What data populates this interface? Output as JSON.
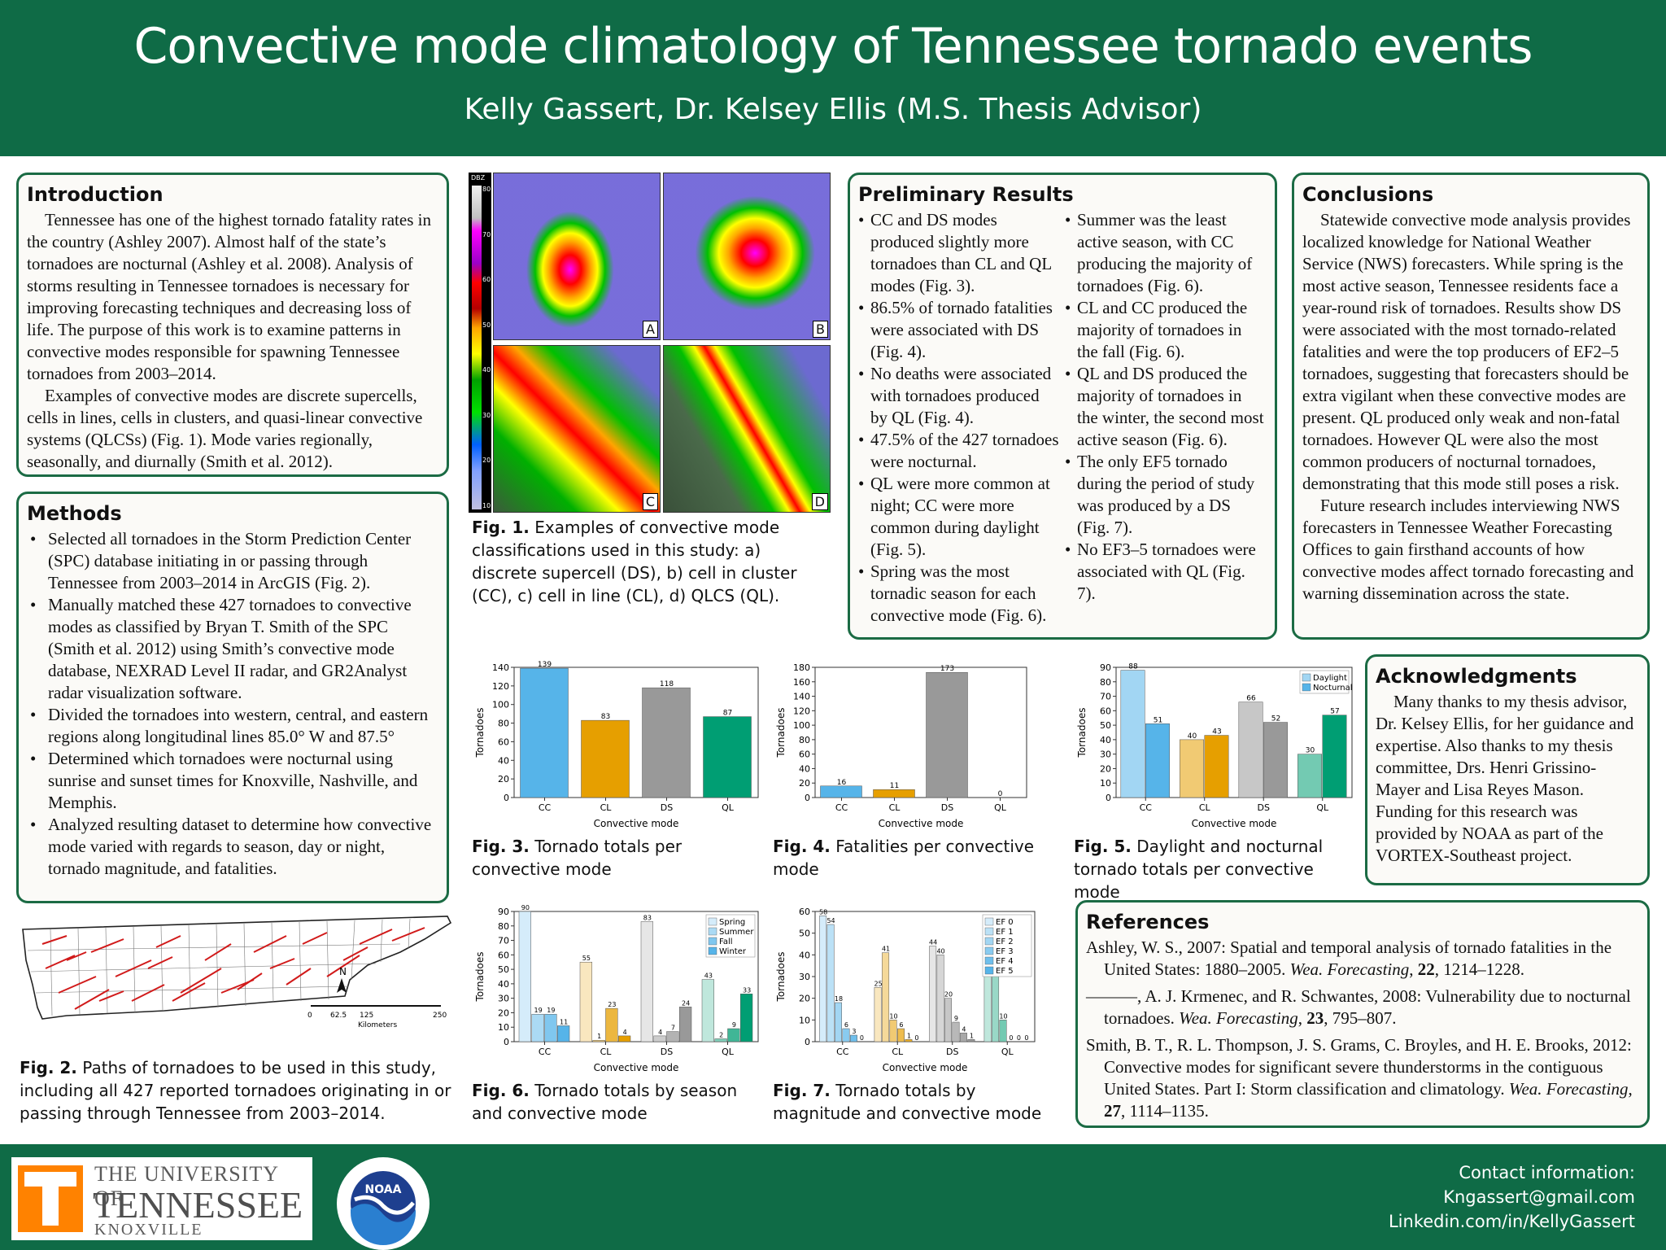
{
  "header": {
    "title": "Convective mode climatology of Tennessee tornado events",
    "authors": "Kelly Gassert, Dr. Kelsey Ellis (M.S. Thesis Advisor)"
  },
  "introduction": {
    "heading": "Introduction",
    "p1": "Tennessee has one of the highest tornado fatality rates in the country (Ashley 2007). Almost half of the state’s tornadoes are nocturnal (Ashley et al. 2008). Analysis of storms resulting in Tennessee tornadoes is necessary for improving forecasting techniques and decreasing loss of life. The purpose of this work is to examine patterns in convective modes responsible for spawning Tennessee tornadoes from 2003–2014.",
    "p2": "Examples of convective modes are discrete supercells, cells in lines, cells in clusters, and quasi-linear convective systems (QLCSs) (Fig. 1). Mode varies regionally, seasonally, and diurnally (Smith et al. 2012)."
  },
  "methods": {
    "heading": "Methods",
    "items": [
      "Selected all tornadoes in the Storm Prediction Center (SPC) database initiating in or passing through Tennessee from 2003–2014 in ArcGIS (Fig. 2).",
      "Manually matched these 427 tornadoes to convective modes as classified by Bryan T. Smith of the SPC (Smith et al. 2012) using Smith’s convective mode database, NEXRAD Level II radar, and GR2Analyst radar visualization software.",
      "Divided the tornadoes into western, central, and eastern regions along longitudinal lines 85.0° W and 87.5°",
      "Determined which tornadoes were nocturnal using sunrise and sunset times for Knoxville, Nashville, and Memphis.",
      "Analyzed resulting dataset to determine how convective mode varied with regards to season, day or night, tornado magnitude, and fatalities."
    ]
  },
  "fig1": {
    "label": "Fig. 1.",
    "caption": " Examples of convective mode classifications used in this study: a) discrete supercell (DS), b) cell in cluster (CC), c) cell in line (CL), d) QLCS (QL).",
    "panels": [
      "A",
      "B",
      "C",
      "D"
    ],
    "colorbar_title": "DBZ",
    "colorbar_ticks": [
      "80",
      "70",
      "60",
      "50",
      "40",
      "30",
      "20",
      "10"
    ]
  },
  "fig2": {
    "label": "Fig. 2.",
    "caption": " Paths of tornadoes to be used in this study, including all 427 reported tornadoes originating in or passing through Tennessee from 2003–2014.",
    "scale_ticks": [
      "0",
      "62.5",
      "125",
      "250"
    ],
    "scale_unit": "Kilometers",
    "north": "N"
  },
  "results": {
    "heading": "Preliminary Results",
    "col1": [
      "CC and DS modes produced slightly more tornadoes than CL and QL modes (Fig. 3).",
      "86.5% of tornado fatalities were associated with DS (Fig. 4).",
      "No deaths were associated with tornadoes produced by QL (Fig. 4).",
      "47.5% of the 427 tornadoes were nocturnal.",
      "QL were more common at night; CC were more common during daylight (Fig. 5).",
      "Spring was the most tornadic season for each convective mode (Fig. 6)."
    ],
    "col2": [
      "Summer was the least active season, with CC producing the majority of tornadoes (Fig. 6).",
      "CL and CC produced the majority of tornadoes in the fall (Fig. 6).",
      "QL and DS produced the majority of tornadoes in the winter, the second most active season (Fig. 6).",
      "The only EF5 tornado during the period of study was produced by a DS (Fig. 7).",
      "No EF3–5 tornadoes were associated with QL (Fig. 7)."
    ]
  },
  "conclusions": {
    "heading": "Conclusions",
    "p1": "Statewide convective mode analysis provides localized knowledge for National Weather Service (NWS) forecasters. While spring is the most active season, Tennessee residents face a year-round risk of tornadoes. Results show DS were associated with the most tornado-related fatalities and were the top producers of EF2–5 tornadoes, suggesting that forecasters should be extra vigilant when these convective modes are present. QL produced only weak and non-fatal tornadoes. However QL were also the most common producers of nocturnal tornadoes, demonstrating that this mode still poses a risk.",
    "p2": "Future research includes interviewing NWS forecasters in Tennessee Weather Forecasting Offices to gain firsthand accounts of how convective modes affect tornado forecasting and warning dissemination across the state."
  },
  "acknowledgments": {
    "heading": "Acknowledgments",
    "p1": "Many thanks to my thesis advisor, Dr. Kelsey Ellis, for her guidance and expertise. Also thanks to my thesis committee, Drs. Henri Grissino-Mayer and Lisa Reyes Mason. Funding for this research was provided by NOAA as part of the VORTEX-Southeast project."
  },
  "references": {
    "heading": "References",
    "r1a": "Ashley, W. S., 2007: Spatial and temporal analysis of tornado fatalities in the United States: 1880–2005. ",
    "r1j": "Wea. Forecasting",
    "r1b": ", ",
    "r1v": "22",
    "r1c": ", 1214–1228.",
    "r2a": "———, A. J. Krmenec, and R. Schwantes, 2008: Vulnerability due to nocturnal tornadoes. ",
    "r2j": "Wea. Forecasting",
    "r2b": ", ",
    "r2v": "23",
    "r2c": ", 795–807.",
    "r3a": "Smith, B. T., R. L. Thompson, J. S. Grams, C. Broyles, and H. E. Brooks, 2012: Convective modes for significant severe thunderstorms in the contiguous United States. Part I: Storm classification and climatology. ",
    "r3j": "Wea. Forecasting",
    "r3b": ", ",
    "r3v": "27",
    "r3c": ", 1114–1135."
  },
  "captions": {
    "fig3_label": "Fig. 3.",
    "fig3": " Tornado totals per convective mode",
    "fig4_label": "Fig. 4.",
    "fig4": " Fatalities per convective mode",
    "fig5_label": "Fig. 5.",
    "fig5": " Daylight and nocturnal tornado totals per convective mode",
    "fig6_label": "Fig. 6.",
    "fig6": " Tornado totals by season and convective mode",
    "fig7_label": "Fig. 7.",
    "fig7": " Tornado totals by magnitude and convective mode"
  },
  "footer": {
    "ut_line1": "THE UNIVERSITY OF",
    "ut_line2": "TENNESSEE",
    "ut_line3": "KNOXVILLE",
    "noaa": "NOAA",
    "contact_title": "Contact information:",
    "email": "Kngassert@gmail.com",
    "linkedin": "Linkedin.com/in/KellyGassert"
  },
  "colors": {
    "header_green": "#0f6b46",
    "panel_border": "#1b6b44",
    "cc": "#56b4e9",
    "cl": "#e69f00",
    "ds": "#999999",
    "ql": "#009e73",
    "track_red": "#d11a1a"
  },
  "chart_data": [
    {
      "id": "fig3",
      "type": "bar",
      "categories": [
        "CC",
        "CL",
        "DS",
        "QL"
      ],
      "values": [
        139,
        83,
        118,
        87
      ],
      "xlabel": "Convective mode",
      "ylabel": "Tornadoes",
      "ylim": [
        0,
        140
      ],
      "yticks": [
        0,
        20,
        40,
        60,
        80,
        100,
        120,
        140
      ]
    },
    {
      "id": "fig4",
      "type": "bar",
      "categories": [
        "CC",
        "CL",
        "DS",
        "QL"
      ],
      "values": [
        16,
        11,
        173,
        0
      ],
      "xlabel": "Convective mode",
      "ylabel": "Tornadoes",
      "ylim": [
        0,
        180
      ],
      "yticks": [
        0,
        20,
        40,
        60,
        80,
        100,
        120,
        140,
        160,
        180
      ]
    },
    {
      "id": "fig5",
      "type": "bar",
      "categories": [
        "CC",
        "CL",
        "DS",
        "QL"
      ],
      "series": [
        {
          "name": "Daylight",
          "values": [
            88,
            40,
            66,
            30
          ]
        },
        {
          "name": "Nocturnal",
          "values": [
            51,
            43,
            52,
            57
          ]
        }
      ],
      "xlabel": "Convective mode",
      "ylabel": "Tornadoes",
      "ylim": [
        0,
        90
      ],
      "yticks": [
        0,
        10,
        20,
        30,
        40,
        50,
        60,
        70,
        80,
        90
      ],
      "legend": "top-right"
    },
    {
      "id": "fig6",
      "type": "bar",
      "categories": [
        "CC",
        "CL",
        "DS",
        "QL"
      ],
      "series": [
        {
          "name": "Spring",
          "values": [
            90,
            55,
            83,
            43
          ]
        },
        {
          "name": "Summer",
          "values": [
            19,
            1,
            4,
            2
          ]
        },
        {
          "name": "Fall",
          "values": [
            19,
            23,
            7,
            9
          ]
        },
        {
          "name": "Winter",
          "values": [
            11,
            4,
            24,
            33
          ]
        }
      ],
      "xlabel": "Convective mode",
      "ylabel": "Tornadoes",
      "ylim": [
        0,
        90
      ],
      "yticks": [
        0,
        10,
        20,
        30,
        40,
        50,
        60,
        70,
        80,
        90
      ],
      "legend": "top-right"
    },
    {
      "id": "fig7",
      "type": "bar",
      "categories": [
        "CC",
        "CL",
        "DS",
        "QL"
      ],
      "series": [
        {
          "name": "EF 0",
          "values": [
            58,
            25,
            44,
            39
          ]
        },
        {
          "name": "EF 1",
          "values": [
            54,
            41,
            40,
            38
          ]
        },
        {
          "name": "EF 2",
          "values": [
            18,
            10,
            20,
            10
          ]
        },
        {
          "name": "EF 3",
          "values": [
            6,
            6,
            9,
            0
          ]
        },
        {
          "name": "EF 4",
          "values": [
            3,
            1,
            4,
            0
          ]
        },
        {
          "name": "EF 5",
          "values": [
            0,
            0,
            1,
            0
          ]
        }
      ],
      "xlabel": "Convective mode",
      "ylabel": "Tornadoes",
      "ylim": [
        0,
        60
      ],
      "yticks": [
        0,
        10,
        20,
        30,
        40,
        50,
        60
      ],
      "legend": "top-right"
    }
  ]
}
